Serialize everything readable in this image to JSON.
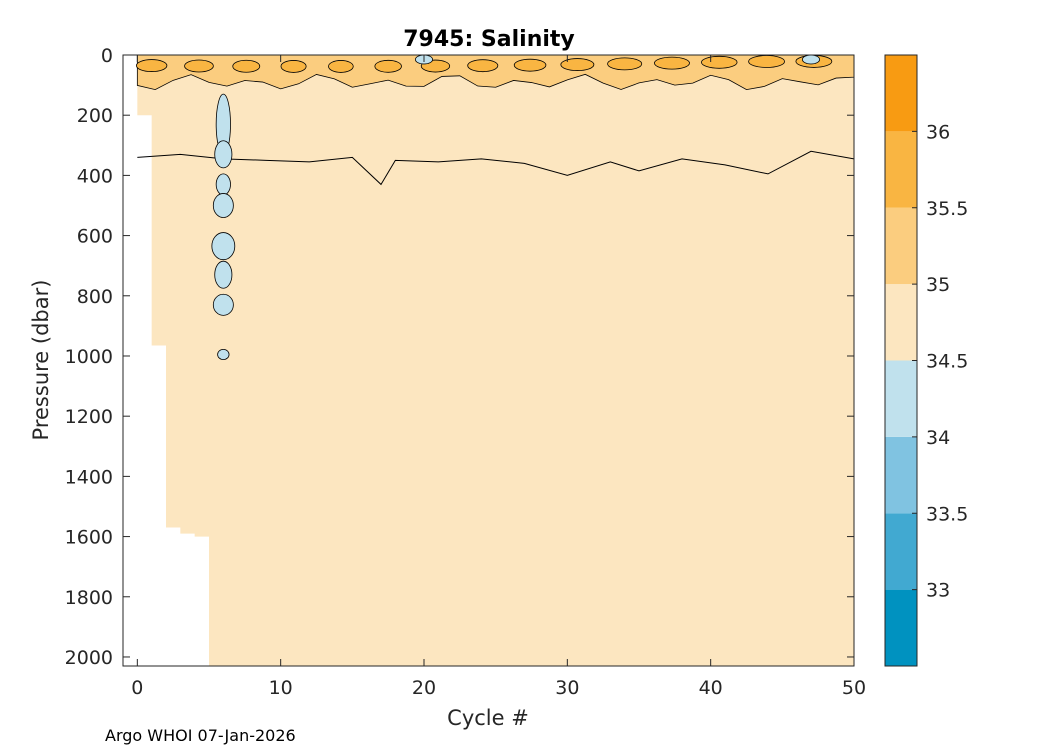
{
  "chart_data": {
    "type": "contour",
    "title": "7945:  Salinity",
    "xlabel": "Cycle #",
    "ylabel": "Pressure (dbar)",
    "xlim": [
      -1,
      50
    ],
    "ylim": [
      2030,
      0
    ],
    "xticks": [
      0,
      10,
      20,
      30,
      40,
      50
    ],
    "xtick_labels": [
      "0",
      "10",
      "20",
      "30",
      "40",
      "50"
    ],
    "yticks": [
      0,
      200,
      400,
      600,
      800,
      1000,
      1200,
      1400,
      1600,
      1800,
      2000
    ],
    "ytick_labels": [
      "0",
      "200",
      "400",
      "600",
      "800",
      "1000",
      "1200",
      "1400",
      "1600",
      "1800",
      "2000"
    ],
    "colorbar": {
      "range": [
        32.5,
        36.5
      ],
      "bands": [
        {
          "from": 32.5,
          "to": 33.0,
          "color": "#0092c0"
        },
        {
          "from": 33.0,
          "to": 33.5,
          "color": "#41a9d1"
        },
        {
          "from": 33.5,
          "to": 34.0,
          "color": "#80c3e1"
        },
        {
          "from": 34.0,
          "to": 34.5,
          "color": "#c0e1ed"
        },
        {
          "from": 34.5,
          "to": 35.0,
          "color": "#fce6c0"
        },
        {
          "from": 35.0,
          "to": 35.5,
          "color": "#fbcd7f"
        },
        {
          "from": 35.5,
          "to": 36.0,
          "color": "#f9b542"
        },
        {
          "from": 36.0,
          "to": 36.5,
          "color": "#f89b12"
        }
      ],
      "ticks": [
        33,
        33.5,
        34,
        34.5,
        35,
        35.5,
        36
      ],
      "tick_labels": [
        "33",
        "33.5",
        "34",
        "34.5",
        "35",
        "35.5",
        "36"
      ]
    },
    "profile_max_depth": [
      {
        "cycle": 0,
        "pressure": 200
      },
      {
        "cycle": 1,
        "pressure": 965
      },
      {
        "cycle": 2,
        "pressure": 1570
      },
      {
        "cycle": 3,
        "pressure": 1590
      },
      {
        "cycle": 4,
        "pressure": 1600
      },
      {
        "cycle": 5,
        "pressure": 2030
      },
      {
        "cycle": 50,
        "pressure": 2030
      }
    ],
    "contour_35_depth": [
      {
        "cycle": 0,
        "pressure": 340
      },
      {
        "cycle": 3,
        "pressure": 330
      },
      {
        "cycle": 6,
        "pressure": 345
      },
      {
        "cycle": 9,
        "pressure": 350
      },
      {
        "cycle": 12,
        "pressure": 355
      },
      {
        "cycle": 15,
        "pressure": 340
      },
      {
        "cycle": 17,
        "pressure": 430
      },
      {
        "cycle": 18,
        "pressure": 350
      },
      {
        "cycle": 21,
        "pressure": 355
      },
      {
        "cycle": 24,
        "pressure": 345
      },
      {
        "cycle": 27,
        "pressure": 360
      },
      {
        "cycle": 30,
        "pressure": 400
      },
      {
        "cycle": 33,
        "pressure": 355
      },
      {
        "cycle": 35,
        "pressure": 385
      },
      {
        "cycle": 38,
        "pressure": 345
      },
      {
        "cycle": 41,
        "pressure": 365
      },
      {
        "cycle": 44,
        "pressure": 395
      },
      {
        "cycle": 47,
        "pressure": 320
      },
      {
        "cycle": 50,
        "pressure": 345
      }
    ],
    "fresh_lenses": [
      {
        "cycle": 6.0,
        "pressure": 230,
        "half_width": 0.5,
        "half_height": 100,
        "class": "34-34.5"
      },
      {
        "cycle": 6.0,
        "pressure": 330,
        "half_width": 0.6,
        "half_height": 45,
        "class": "34-34.5"
      },
      {
        "cycle": 6.0,
        "pressure": 430,
        "half_width": 0.5,
        "half_height": 35,
        "class": "34-34.5"
      },
      {
        "cycle": 6.0,
        "pressure": 500,
        "half_width": 0.7,
        "half_height": 40,
        "class": "34-34.5"
      },
      {
        "cycle": 6.0,
        "pressure": 635,
        "half_width": 0.8,
        "half_height": 45,
        "class": "34-34.5"
      },
      {
        "cycle": 6.0,
        "pressure": 730,
        "half_width": 0.6,
        "half_height": 45,
        "class": "34-34.5"
      },
      {
        "cycle": 6.0,
        "pressure": 830,
        "half_width": 0.7,
        "half_height": 35,
        "class": "34-34.5"
      },
      {
        "cycle": 6.0,
        "pressure": 995,
        "half_width": 0.4,
        "half_height": 17,
        "class": "34-34.5"
      },
      {
        "cycle": 20.0,
        "pressure": 15,
        "half_width": 0.6,
        "half_height": 15,
        "class": "34-34.5"
      },
      {
        "cycle": 47.0,
        "pressure": 15,
        "half_width": 0.6,
        "half_height": 15,
        "class": "34-34.5"
      }
    ],
    "surface_layer": {
      "pressure_top": 0,
      "pressure_bottom": 140,
      "class": "35-35.5"
    }
  },
  "credit": "Argo WHOI 07-Jan-2026"
}
